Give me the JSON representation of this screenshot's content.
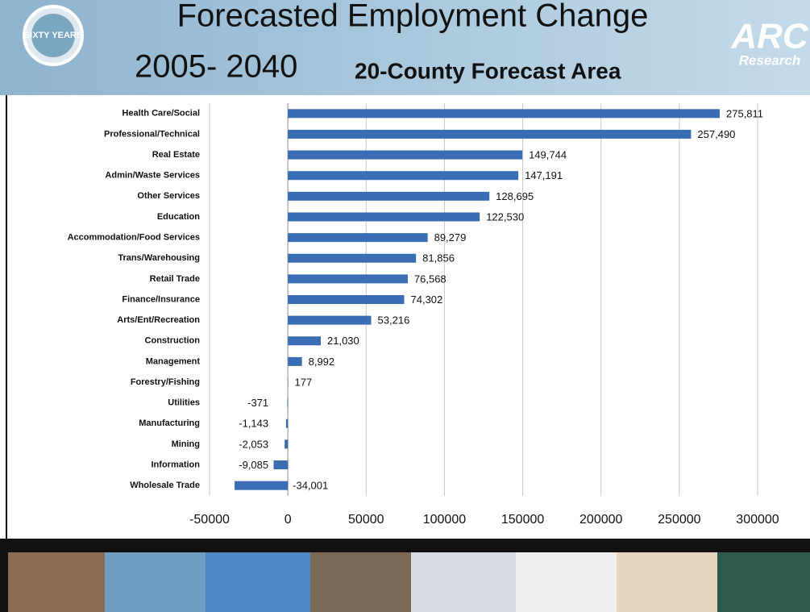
{
  "chart_data": {
    "type": "bar",
    "orientation": "horizontal",
    "badge": "SIXTY YEARS",
    "brand": "ARC",
    "brand_sub": "Research",
    "title": "Forecasted Employment Change",
    "period": "2005- 2040",
    "subtitle": "20-County Forecast Area",
    "categories": [
      "Health Care/Social",
      "Professional/Technical",
      "Real Estate",
      "Admin/Waste Services",
      "Other Services",
      "Education",
      "Accommodation/Food Services",
      "Trans/Warehousing",
      "Retail Trade",
      "Finance/Insurance",
      "Arts/Ent/Recreation",
      "Construction",
      "Management",
      "Forestry/Fishing",
      "Utilities",
      "Manufacturing",
      "Mining",
      "Information",
      "Wholesale Trade"
    ],
    "values": [
      275811,
      257490,
      149744,
      147191,
      128695,
      122530,
      89279,
      81856,
      76568,
      74302,
      53216,
      21030,
      8992,
      177,
      -371,
      -1143,
      -2053,
      -9085,
      -34001
    ],
    "value_labels": [
      "275,811",
      "257,490",
      "149,744",
      "147,191",
      "128,695",
      "122,530",
      "89,279",
      "81,856",
      "76,568",
      "74,302",
      "53,216",
      "21,030",
      "8,992",
      "177",
      "-371",
      "-1,143",
      "-2,053",
      "-9,085",
      "-34,001"
    ],
    "color": "#3a6db3",
    "xlim": [
      -50000,
      300000
    ],
    "xticks": [
      -50000,
      0,
      50000,
      100000,
      150000,
      200000,
      250000,
      300000
    ],
    "grid": true
  }
}
